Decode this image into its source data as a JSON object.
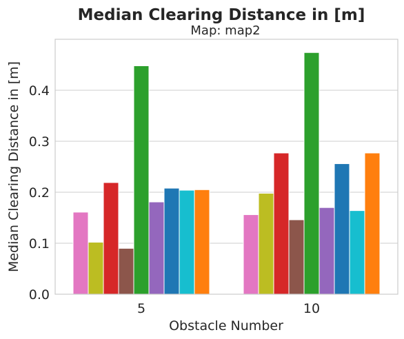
{
  "chart_data": {
    "type": "bar",
    "title": "Median Clearing Distance in [m]",
    "subtitle": "Map: map2",
    "xlabel": "Obstacle Number",
    "ylabel": "Median Clearing Distance in [m]",
    "categories": [
      "5",
      "10"
    ],
    "ylim": [
      0,
      0.5
    ],
    "yticks": [
      "0.0",
      "0.1",
      "0.2",
      "0.3",
      "0.4"
    ],
    "ytick_values": [
      0.0,
      0.1,
      0.2,
      0.3,
      0.4
    ],
    "grid": true,
    "legend": "none",
    "series": [
      {
        "color": "#e377c2",
        "values": [
          0.161,
          0.156
        ]
      },
      {
        "color": "#bcbd22",
        "values": [
          0.102,
          0.198
        ]
      },
      {
        "color": "#d62728",
        "values": [
          0.219,
          0.277
        ]
      },
      {
        "color": "#8c564b",
        "values": [
          0.09,
          0.146
        ]
      },
      {
        "color": "#2ca02c",
        "values": [
          0.448,
          0.474
        ]
      },
      {
        "color": "#9467bd",
        "values": [
          0.181,
          0.17
        ]
      },
      {
        "color": "#1f77b4",
        "values": [
          0.208,
          0.256
        ]
      },
      {
        "color": "#17becf",
        "values": [
          0.204,
          0.164
        ]
      },
      {
        "color": "#ff7f0e",
        "values": [
          0.205,
          0.277
        ]
      }
    ]
  }
}
